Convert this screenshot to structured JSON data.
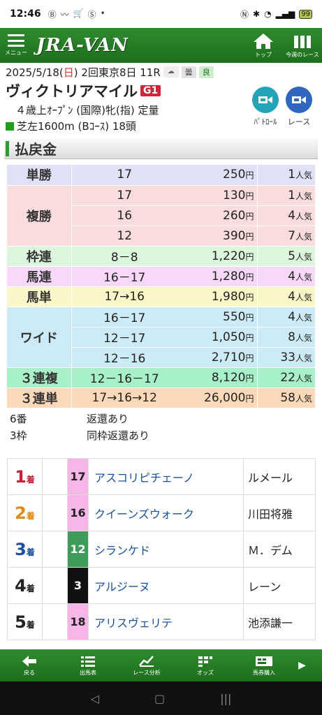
{
  "status_bar": {
    "time": "12:46",
    "battery": "99"
  },
  "header": {
    "menu_label": "メニュー",
    "logo": "JRA-VAN",
    "top_label": "トップ",
    "week_label": "今週のレース"
  },
  "race": {
    "date_prefix": "2025/5/18(",
    "day": "日",
    "date_suffix": ") 2回東京8日 11R",
    "weather": "曇",
    "track_condition": "良",
    "name": "ヴィクトリアマイル",
    "grade": "G1",
    "conditions": "４歳上ｵｰﾌﾟﾝ (国際)牝(指) 定量",
    "course": "芝左1600m (Bｺｰｽ) 18頭"
  },
  "buttons": {
    "patrol": "ﾊﾟﾄﾛｰﾙ",
    "race": "レース"
  },
  "section_title": "払戻金",
  "payouts": [
    {
      "kind": "単勝",
      "bg": "#e0e0f6",
      "rows": [
        {
          "num": "17",
          "amount": "250",
          "pop": "1"
        }
      ]
    },
    {
      "kind": "複勝",
      "bg": "#fbdcdc",
      "rows": [
        {
          "num": "17",
          "amount": "130",
          "pop": "1"
        },
        {
          "num": "16",
          "amount": "260",
          "pop": "4"
        },
        {
          "num": "12",
          "amount": "390",
          "pop": "7"
        }
      ]
    },
    {
      "kind": "枠連",
      "bg": "#dcf6dc",
      "rows": [
        {
          "num": "8－8",
          "amount": "1,220",
          "pop": "5"
        }
      ]
    },
    {
      "kind": "馬連",
      "bg": "#f8d8f8",
      "rows": [
        {
          "num": "16－17",
          "amount": "1,280",
          "pop": "4"
        }
      ]
    },
    {
      "kind": "馬単",
      "bg": "#fbf6c8",
      "rows": [
        {
          "num": "17→16",
          "amount": "1,980",
          "pop": "4"
        }
      ]
    },
    {
      "kind": "ワイド",
      "bg": "#cdebf6",
      "rows": [
        {
          "num": "16－17",
          "amount": "550",
          "pop": "4"
        },
        {
          "num": "12－17",
          "amount": "1,050",
          "pop": "8"
        },
        {
          "num": "12－16",
          "amount": "2,710",
          "pop": "33"
        }
      ]
    },
    {
      "kind": "３連複",
      "bg": "#a8f0c8",
      "rows": [
        {
          "num": "12－16－17",
          "amount": "8,120",
          "pop": "22"
        }
      ]
    },
    {
      "kind": "３連単",
      "bg": "#fbd8b8",
      "rows": [
        {
          "num": "17→16→12",
          "amount": "26,000",
          "pop": "58"
        }
      ]
    }
  ],
  "yen": "円",
  "pop_unit": "人気",
  "notes": [
    {
      "key": "6番",
      "val": "返還あり"
    },
    {
      "key": "3枠",
      "val": "同枠返還あり"
    }
  ],
  "results": [
    {
      "place": "1",
      "color": "#c8203a",
      "post": "17",
      "post_bg": "#f7b6e8",
      "post_fg": "#222",
      "horse": "アスコリピチェーノ",
      "jockey": "ルメール"
    },
    {
      "place": "2",
      "color": "#e08a10",
      "post": "16",
      "post_bg": "#f7b6e8",
      "post_fg": "#222",
      "horse": "クイーンズウォーク",
      "jockey": "川田将雅"
    },
    {
      "place": "3",
      "color": "#1a4fa0",
      "post": "12",
      "post_bg": "#3c9c58",
      "post_fg": "#fff",
      "horse": "シランケド",
      "jockey": "Ｍ．デム"
    },
    {
      "place": "4",
      "color": "#222222",
      "post": "3",
      "post_bg": "#111111",
      "post_fg": "#fff",
      "horse": "アルジーヌ",
      "jockey": "レーン"
    },
    {
      "place": "5",
      "color": "#222222",
      "post": "18",
      "post_bg": "#f7b6e8",
      "post_fg": "#222",
      "horse": "アリスヴェリテ",
      "jockey": "池添謙一"
    }
  ],
  "place_suffix": "着",
  "toolbar": {
    "back": "戻る",
    "entries": "出馬表",
    "analysis": "レース分析",
    "odds": "オッズ",
    "buy": "馬券購入"
  }
}
